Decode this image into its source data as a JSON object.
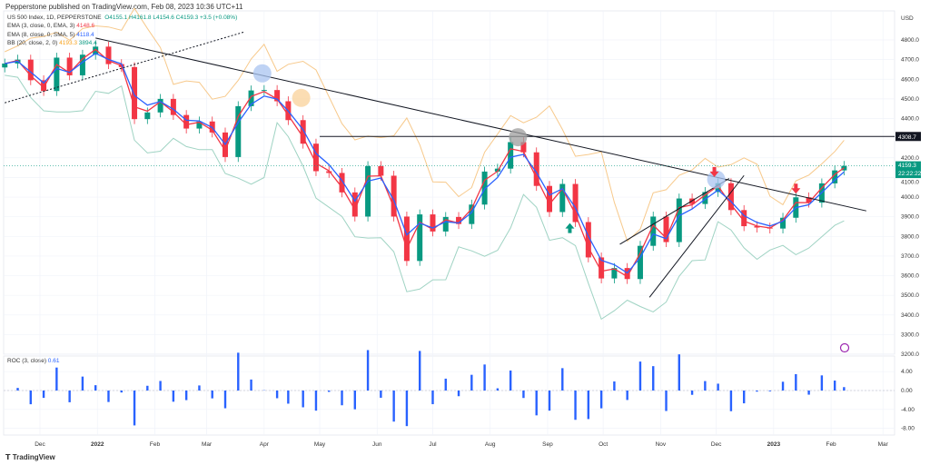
{
  "header": {
    "published": "Pepperstone published on TradingView.com, Feb 08, 2023 10:36 UTC+11"
  },
  "legend": {
    "symbol": "US 500 Index, 1D, PEPPERSTONE",
    "open": "O4155.1",
    "high": "H4161.8",
    "low": "L4154.6",
    "close": "C4159.3",
    "change": "+3.5 (+0.08%)",
    "ema1_label": "EMA (3, close, 0, EMA, 3)",
    "ema1_value": "4148.6",
    "ema2_label": "EMA (8, close, 0, SMA, 5)",
    "ema2_value": "4118.4",
    "bb_label": "BB (20, close, 2, 0)",
    "bb_upper": "4193.3",
    "bb_lower": "3894.4"
  },
  "roc_legend": {
    "label": "ROC (3, close)",
    "value": "0.61"
  },
  "footer": {
    "brand": "TradingView"
  },
  "colors": {
    "up": "#089981",
    "down": "#f23645",
    "ema1": "#f23645",
    "ema2": "#2962ff",
    "bb_upper": "#f7c98b",
    "bb_lower": "#9fd3c3",
    "roc": "#2962ff",
    "trendline": "#131722"
  },
  "chart_data": {
    "type": "candlestick",
    "currency": "USD",
    "y_ticks": [
      "4800.0",
      "4700.0",
      "4600.0",
      "4500.0",
      "4400.0",
      "4200.0",
      "4100.0",
      "4000.0",
      "3900.0",
      "3800.0",
      "3700.0",
      "3600.0",
      "3500.0",
      "3400.0",
      "3300.0",
      "3200.0"
    ],
    "ylim": [
      3200,
      4850
    ],
    "roc_ticks": [
      "4.00",
      "0.00",
      "-4.00",
      "-8.00"
    ],
    "x_ticks": [
      {
        "label": "Dec",
        "date": "2021-12-01"
      },
      {
        "label": "2022",
        "date": "2022-01-01"
      },
      {
        "label": "Feb",
        "date": "2022-02-01"
      },
      {
        "label": "Mar",
        "date": "2022-03-01"
      },
      {
        "label": "Apr",
        "date": "2022-04-01"
      },
      {
        "label": "May",
        "date": "2022-05-01"
      },
      {
        "label": "Jun",
        "date": "2022-06-01"
      },
      {
        "label": "Jul",
        "date": "2022-07-01"
      },
      {
        "label": "Aug",
        "date": "2022-08-01"
      },
      {
        "label": "Sep",
        "date": "2022-09-01"
      },
      {
        "label": "Oct",
        "date": "2022-10-01"
      },
      {
        "label": "Nov",
        "date": "2022-11-01"
      },
      {
        "label": "Dec",
        "date": "2022-12-01"
      },
      {
        "label": "2023",
        "date": "2023-01-01"
      },
      {
        "label": "Feb",
        "date": "2023-02-01"
      },
      {
        "label": "Mar",
        "date": "2023-03-01"
      }
    ],
    "price_labels": {
      "level": "4308.7",
      "last": "4159.3",
      "countdown": "22:22:22"
    },
    "level_value": 4308.7,
    "last_value": 4159.3,
    "closes": [
      [
        "2021-11-12",
        4680
      ],
      [
        "2021-11-19",
        4700
      ],
      [
        "2021-11-26",
        4595
      ],
      [
        "2021-12-03",
        4540
      ],
      [
        "2021-12-10",
        4710
      ],
      [
        "2021-12-17",
        4620
      ],
      [
        "2021-12-24",
        4725
      ],
      [
        "2021-12-31",
        4766
      ],
      [
        "2022-01-07",
        4677
      ],
      [
        "2022-01-14",
        4662
      ],
      [
        "2022-01-21",
        4397
      ],
      [
        "2022-01-28",
        4431
      ],
      [
        "2022-02-04",
        4500
      ],
      [
        "2022-02-11",
        4418
      ],
      [
        "2022-02-18",
        4349
      ],
      [
        "2022-02-25",
        4385
      ],
      [
        "2022-03-04",
        4329
      ],
      [
        "2022-03-11",
        4204
      ],
      [
        "2022-03-18",
        4463
      ],
      [
        "2022-03-25",
        4543
      ],
      [
        "2022-04-01",
        4545
      ],
      [
        "2022-04-08",
        4488
      ],
      [
        "2022-04-14",
        4392
      ],
      [
        "2022-04-22",
        4272
      ],
      [
        "2022-04-29",
        4132
      ],
      [
        "2022-05-06",
        4123
      ],
      [
        "2022-05-13",
        4024
      ],
      [
        "2022-05-20",
        3901
      ],
      [
        "2022-05-27",
        4158
      ],
      [
        "2022-06-03",
        4109
      ],
      [
        "2022-06-10",
        3901
      ],
      [
        "2022-06-17",
        3675
      ],
      [
        "2022-06-24",
        3912
      ],
      [
        "2022-07-01",
        3825
      ],
      [
        "2022-07-08",
        3899
      ],
      [
        "2022-07-15",
        3863
      ],
      [
        "2022-07-22",
        3962
      ],
      [
        "2022-07-29",
        4130
      ],
      [
        "2022-08-05",
        4145
      ],
      [
        "2022-08-12",
        4280
      ],
      [
        "2022-08-19",
        4228
      ],
      [
        "2022-08-26",
        4057
      ],
      [
        "2022-09-02",
        3924
      ],
      [
        "2022-09-09",
        4067
      ],
      [
        "2022-09-16",
        3873
      ],
      [
        "2022-09-23",
        3693
      ],
      [
        "2022-09-30",
        3586
      ],
      [
        "2022-10-07",
        3639
      ],
      [
        "2022-10-14",
        3583
      ],
      [
        "2022-10-21",
        3752
      ],
      [
        "2022-10-28",
        3901
      ],
      [
        "2022-11-04",
        3771
      ],
      [
        "2022-11-11",
        3993
      ],
      [
        "2022-11-18",
        3965
      ],
      [
        "2022-11-25",
        4026
      ],
      [
        "2022-12-02",
        4071
      ],
      [
        "2022-12-09",
        3934
      ],
      [
        "2022-12-16",
        3852
      ],
      [
        "2022-12-23",
        3845
      ],
      [
        "2022-12-30",
        3840
      ],
      [
        "2023-01-06",
        3895
      ],
      [
        "2023-01-13",
        3999
      ],
      [
        "2023-01-20",
        3972
      ],
      [
        "2023-01-27",
        4070
      ],
      [
        "2023-02-03",
        4136
      ],
      [
        "2023-02-08",
        4159
      ]
    ],
    "indicators": [
      "EMA (3, close, 0, EMA, 3)",
      "EMA (8, close, 0, SMA, 5)",
      "BB (20, close, 2, 0)",
      "ROC (3, close)"
    ],
    "drawings": {
      "trendlines": [
        [
          [
            "2021-12-31",
            4810
          ],
          [
            "2023-02-20",
            3930
          ]
        ],
        [
          [
            "2022-10-10",
            3760
          ],
          [
            "2022-12-08",
            4095
          ]
        ],
        [
          [
            "2022-10-26",
            3490
          ],
          [
            "2022-12-16",
            4110
          ]
        ]
      ],
      "dotted_trendline": [
        [
          "2021-11-12",
          4480
        ],
        [
          "2022-03-21",
          4840
        ]
      ],
      "horizontal": {
        "from": "2022-05-01",
        "value": 4308.7
      },
      "markers": [
        {
          "type": "circle",
          "color": "#a9c4f0",
          "date": "2022-03-31",
          "value": 4630
        },
        {
          "type": "circle",
          "color": "#f9d29a",
          "date": "2022-04-21",
          "value": 4505
        },
        {
          "type": "circle",
          "color": "#9e9e9e",
          "date": "2022-08-16",
          "value": 4305
        },
        {
          "type": "circle",
          "color": "#a9c4f0",
          "date": "2022-12-01",
          "value": 4090
        }
      ],
      "arrows": [
        {
          "dir": "up",
          "color": "#089981",
          "date": "2022-09-13",
          "value": 3840
        },
        {
          "dir": "down",
          "color": "#f23645",
          "date": "2022-11-30",
          "value": 4130
        },
        {
          "dir": "down",
          "color": "#f23645",
          "date": "2023-01-13",
          "value": 4045
        }
      ]
    },
    "grid": true
  }
}
